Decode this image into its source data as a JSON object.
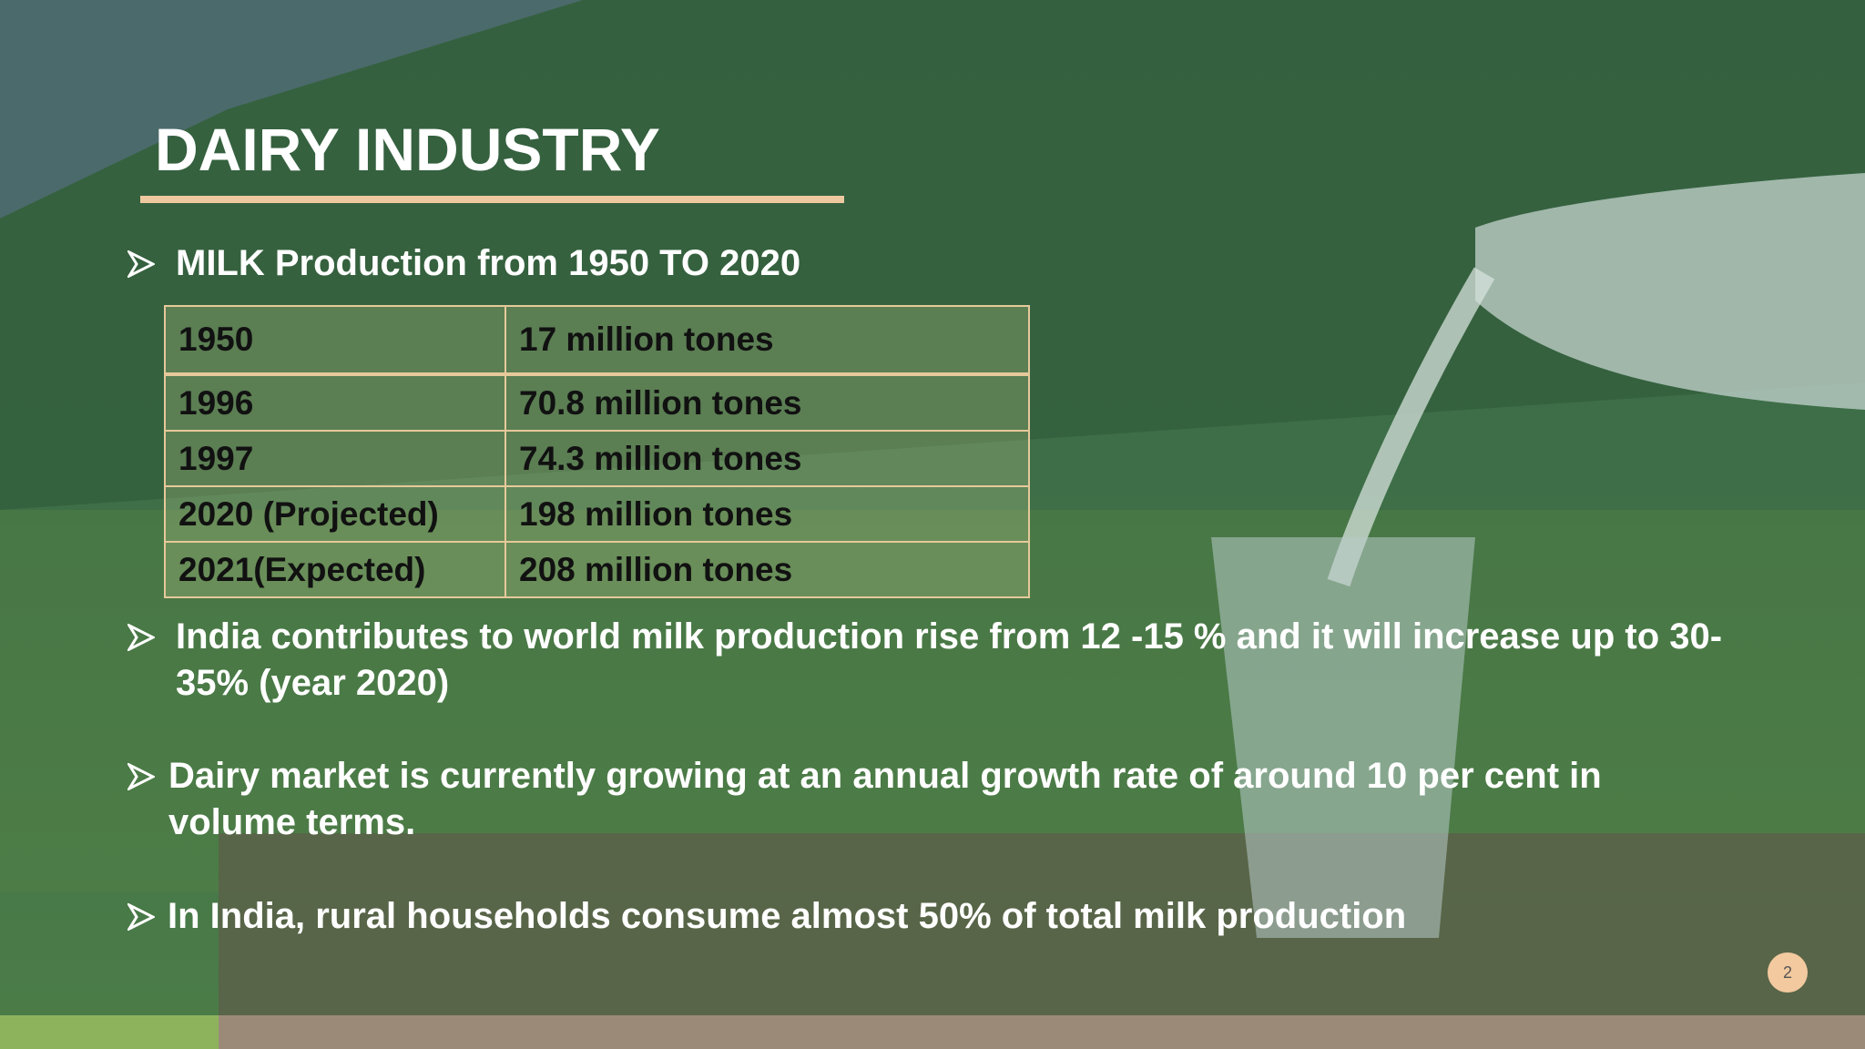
{
  "header": {
    "title": "DAIRY INDUSTRY"
  },
  "bullets": [
    {
      "text": "MILK Production from 1950 TO 2020"
    },
    {
      "text": "India contributes to world milk production rise from 12 -15 % and it will increase up to 30-35% (year 2020)"
    },
    {
      "text": "Dairy market is currently growing at an annual growth rate of around 10 per cent in volume terms."
    },
    {
      "text": "In India, rural households consume almost 50% of total milk production"
    }
  ],
  "table": {
    "rows": [
      [
        "1950",
        "17 million tones"
      ],
      [
        "1996",
        "70.8 million tones"
      ],
      [
        "1997",
        "74.3 million tones"
      ],
      [
        "2020 (Projected)",
        "198 million tones"
      ],
      [
        "2021(Expected)",
        "208 million tones"
      ]
    ]
  },
  "page_number": "2"
}
